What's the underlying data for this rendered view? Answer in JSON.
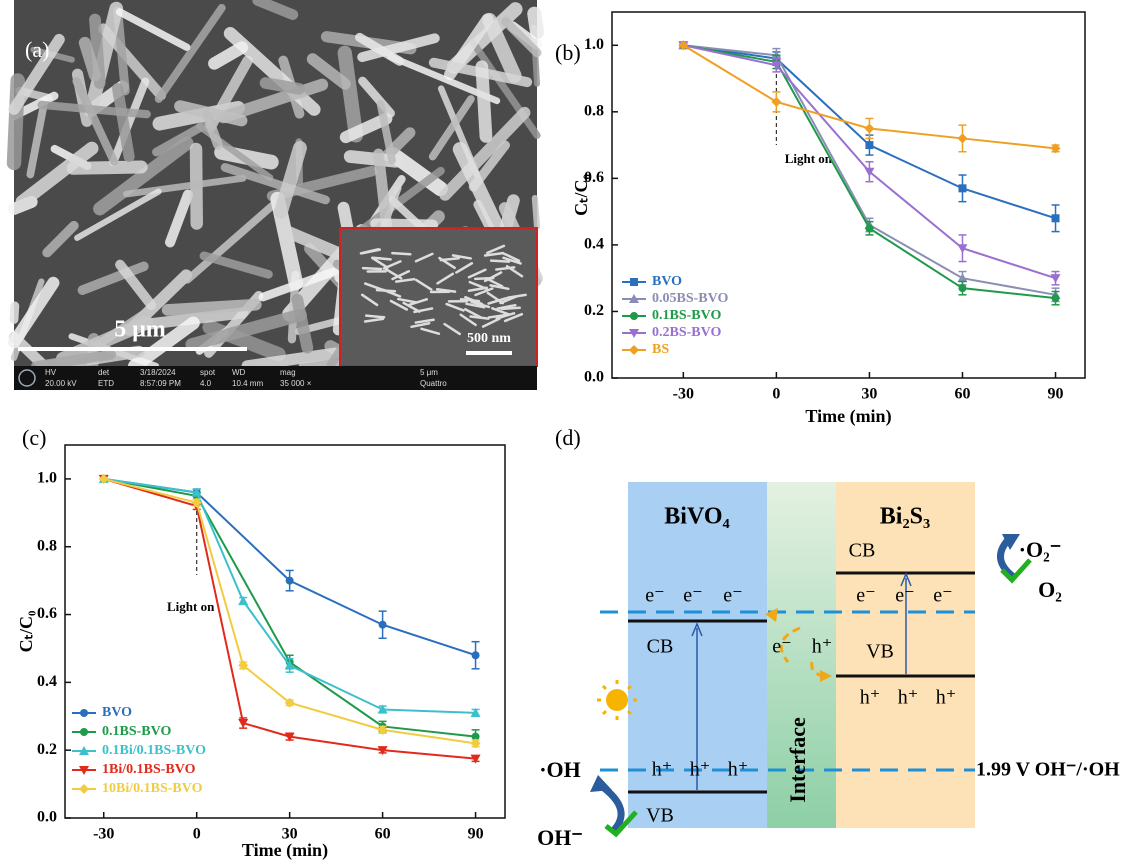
{
  "panel_labels": [
    "(a)",
    "(b)",
    "(c)",
    "(d)"
  ],
  "sem": {
    "scale_bar": "5 μm",
    "inset_scale_bar": "500 nm",
    "info": [
      "HV",
      "det",
      "3/18/2024",
      "spot",
      "WD",
      "mag",
      "20.00 kV",
      "ETD",
      "8:57:09 PM",
      "4.0",
      "10.4 mm",
      "35 000 ×",
      "5 μm",
      "Quattro"
    ]
  },
  "chart_data": [
    {
      "type": "line",
      "x_label": "Time (min)",
      "y_label": "Cₜ/C₀",
      "annotation": "Light on",
      "x": [
        -30,
        0,
        30,
        60,
        90
      ],
      "xlim": [
        -53,
        99.5
      ],
      "ylim": [
        0,
        1.1
      ],
      "xticks": [
        -30,
        0,
        30,
        60,
        90
      ],
      "yticks": [
        {
          "value": 0,
          "label": "0.0"
        },
        0.2,
        0.4,
        0.6,
        0.8,
        {
          "value": 1,
          "label": "1.0"
        }
      ],
      "legend": "lower left",
      "series": [
        {
          "name": "BVO",
          "color": "#2a6fbe",
          "marker": "square",
          "values": [
            1.0,
            0.96,
            0.7,
            0.57,
            0.48
          ],
          "errors": [
            0,
            0.02,
            0.03,
            0.04,
            0.04
          ]
        },
        {
          "name": "0.05BS-BVO",
          "color": "#8a8db4",
          "marker": "triangle",
          "values": [
            1.0,
            0.97,
            0.46,
            0.3,
            0.25
          ],
          "errors": [
            0,
            0.02,
            0.02,
            0.02,
            0.02
          ]
        },
        {
          "name": "0.1BS-BVO",
          "color": "#1e9a4a",
          "marker": "circle",
          "values": [
            1.0,
            0.95,
            0.45,
            0.27,
            0.24
          ],
          "errors": [
            0,
            0.02,
            0.02,
            0.02,
            0.02
          ]
        },
        {
          "name": "0.2BS-BVO",
          "color": "#9a6fd2",
          "marker": "triangle-down",
          "values": [
            1.0,
            0.94,
            0.62,
            0.39,
            0.3
          ],
          "errors": [
            0,
            0.02,
            0.03,
            0.04,
            0.02
          ]
        },
        {
          "name": "BS",
          "color": "#f0a020",
          "marker": "diamond",
          "values": [
            1.0,
            0.83,
            0.75,
            0.72,
            0.69
          ],
          "errors": [
            0,
            0.03,
            0.03,
            0.04,
            0.01
          ]
        }
      ]
    },
    {
      "type": "line",
      "x_label": "Time (min)",
      "y_label": "Cₜ/C₀",
      "annotation": "Light on",
      "xlim": [
        -42.5,
        99.5
      ],
      "ylim": [
        0,
        1.1
      ],
      "xticks": [
        -30,
        0,
        30,
        60,
        90
      ],
      "yticks": [
        {
          "value": 0,
          "label": "0.0"
        },
        0.2,
        0.4,
        0.6,
        0.8,
        {
          "value": 1,
          "label": "1.0"
        }
      ],
      "legend": "lower left",
      "series": [
        {
          "name": "BVO",
          "color": "#2a6fbe",
          "marker": "circle",
          "x": [
            -30,
            0,
            30,
            60,
            90
          ],
          "values": [
            1.0,
            0.96,
            0.7,
            0.57,
            0.48
          ],
          "errors": [
            0,
            0.01,
            0.03,
            0.04,
            0.04
          ]
        },
        {
          "name": "0.1BS-BVO",
          "color": "#1e9a4a",
          "marker": "circle",
          "x": [
            -30,
            0,
            30,
            60,
            90
          ],
          "values": [
            1.0,
            0.95,
            0.46,
            0.27,
            0.24
          ],
          "errors": [
            0,
            0.01,
            0.02,
            0.015,
            0.02
          ]
        },
        {
          "name": "0.1Bi/0.1BS-BVO",
          "color": "#3cc0cc",
          "marker": "triangle",
          "x": [
            -30,
            0,
            15,
            30,
            60,
            90
          ],
          "values": [
            1.0,
            0.96,
            0.64,
            0.45,
            0.32,
            0.31
          ],
          "errors": [
            0,
            0.01,
            0.01,
            0.02,
            0.01,
            0.01
          ]
        },
        {
          "name": "1Bi/0.1BS-BVO",
          "color": "#e02a1c",
          "marker": "triangle-down",
          "x": [
            -30,
            0,
            15,
            30,
            60,
            90
          ],
          "values": [
            1.0,
            0.92,
            0.28,
            0.24,
            0.2,
            0.175
          ],
          "errors": [
            0,
            0.01,
            0.015,
            0.01,
            0.008,
            0.008
          ]
        },
        {
          "name": "10Bi/0.1BS-BVO",
          "color": "#f2cc40",
          "marker": "diamond",
          "x": [
            -30,
            0,
            15,
            30,
            60,
            90
          ],
          "values": [
            1.0,
            0.93,
            0.45,
            0.34,
            0.26,
            0.22
          ],
          "errors": [
            0,
            0.01,
            0.01,
            0.008,
            0.01,
            0.01
          ]
        }
      ]
    }
  ],
  "diagram": {
    "left_material": "BiVO₄",
    "right_material": "Bi₂S₃",
    "left_cb": "CB",
    "left_vb": "VB",
    "right_cb": "CB",
    "right_vb": "VB",
    "left_electrons": [
      "e⁻",
      "e⁻",
      "e⁻"
    ],
    "right_electrons": [
      "e⁻",
      "e⁻",
      "e⁻"
    ],
    "left_holes": [
      "h⁺",
      "h⁺",
      "h⁺"
    ],
    "right_holes": [
      "h⁺",
      "h⁺",
      "h⁺"
    ],
    "interface_electron": "e⁻",
    "interface_hole": "h⁺",
    "interface": "Interface",
    "potential": "1.99 V OH⁻/·OH",
    "hydroxyl_radical": "·OH",
    "hydroxide": "OH⁻",
    "superoxide": "·O₂⁻",
    "oxygen": "O₂"
  }
}
